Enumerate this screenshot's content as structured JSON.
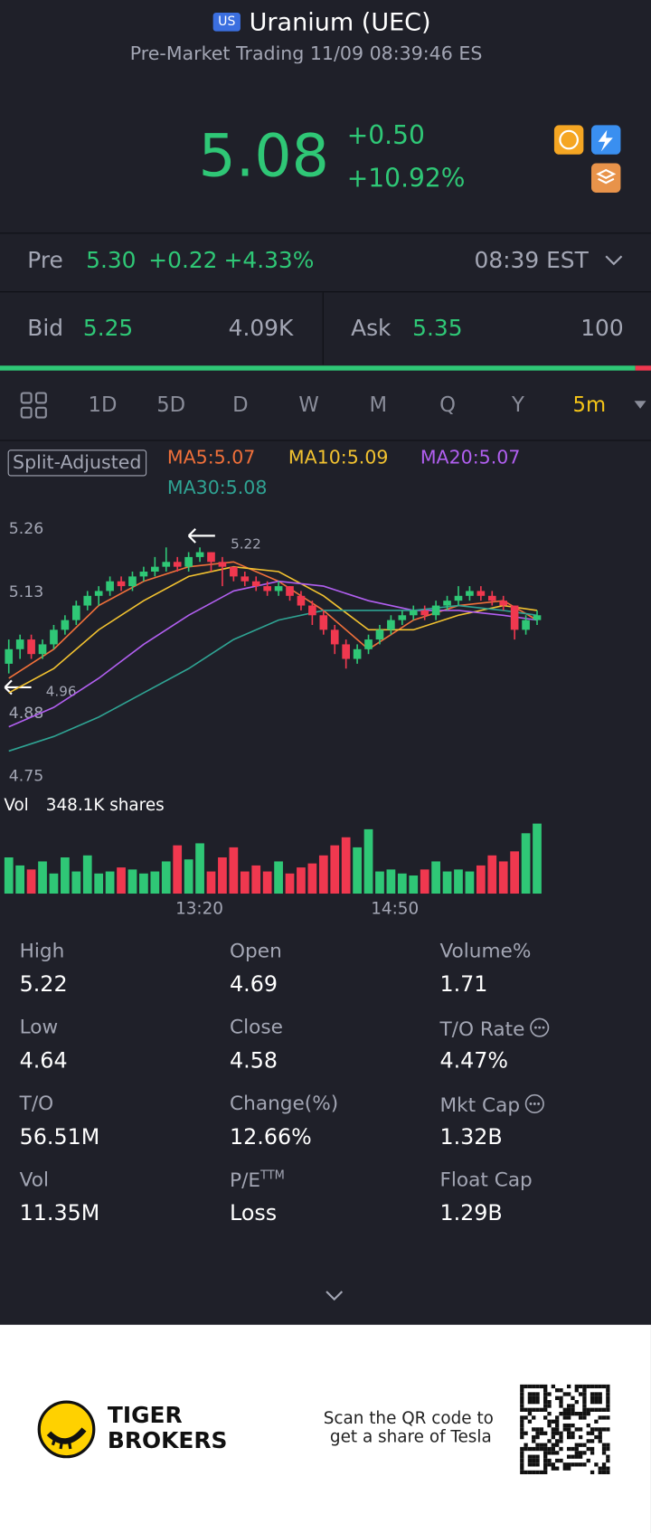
{
  "header": {
    "market_badge": "US",
    "title": "Uranium (UEC)",
    "subtitle": "Pre-Market Trading 11/09 08:39:46 ES"
  },
  "quote": {
    "price": "5.08",
    "change": "+0.50",
    "change_pct": "+10.92%"
  },
  "pre": {
    "label": "Pre",
    "price": "5.30",
    "change": "+0.22",
    "change_pct": "+4.33%",
    "time": "08:39 EST"
  },
  "bid": {
    "label": "Bid",
    "price": "5.25",
    "size": "4.09K"
  },
  "ask": {
    "label": "Ask",
    "price": "5.35",
    "size": "100"
  },
  "periods": [
    "1D",
    "5D",
    "D",
    "W",
    "M",
    "Q",
    "Y",
    "5m"
  ],
  "chart": {
    "type": "candlestick",
    "adjust_label": "Split-Adjusted",
    "ylim": [
      4.75,
      5.26
    ],
    "yticks": [
      5.26,
      5.13,
      4.88,
      4.75
    ],
    "high_marker": 5.22,
    "low_marker": 4.96,
    "candles": [
      [
        4.98,
        5.03,
        4.96,
        5.01
      ],
      [
        5.01,
        5.04,
        4.99,
        5.03
      ],
      [
        5.03,
        5.04,
        4.99,
        5.0
      ],
      [
        5.0,
        5.03,
        4.99,
        5.02
      ],
      [
        5.02,
        5.06,
        5.01,
        5.05
      ],
      [
        5.05,
        5.08,
        5.04,
        5.07
      ],
      [
        5.07,
        5.11,
        5.06,
        5.1
      ],
      [
        5.1,
        5.13,
        5.09,
        5.12
      ],
      [
        5.12,
        5.14,
        5.1,
        5.13
      ],
      [
        5.13,
        5.16,
        5.12,
        5.15
      ],
      [
        5.15,
        5.16,
        5.13,
        5.14
      ],
      [
        5.14,
        5.17,
        5.13,
        5.16
      ],
      [
        5.16,
        5.18,
        5.15,
        5.17
      ],
      [
        5.17,
        5.2,
        5.16,
        5.18
      ],
      [
        5.18,
        5.22,
        5.17,
        5.19
      ],
      [
        5.19,
        5.2,
        5.17,
        5.18
      ],
      [
        5.18,
        5.21,
        5.17,
        5.2
      ],
      [
        5.2,
        5.22,
        5.19,
        5.21
      ],
      [
        5.21,
        5.21,
        5.17,
        5.19
      ],
      [
        5.19,
        5.2,
        5.14,
        5.18
      ],
      [
        5.18,
        5.18,
        5.15,
        5.16
      ],
      [
        5.16,
        5.17,
        5.14,
        5.15
      ],
      [
        5.15,
        5.16,
        5.13,
        5.14
      ],
      [
        5.14,
        5.15,
        5.12,
        5.13
      ],
      [
        5.13,
        5.15,
        5.12,
        5.14
      ],
      [
        5.14,
        5.14,
        5.11,
        5.12
      ],
      [
        5.12,
        5.13,
        5.09,
        5.1
      ],
      [
        5.1,
        5.11,
        5.06,
        5.08
      ],
      [
        5.08,
        5.09,
        5.04,
        5.05
      ],
      [
        5.05,
        5.06,
        5.0,
        5.02
      ],
      [
        5.02,
        5.03,
        4.97,
        4.99
      ],
      [
        4.99,
        5.02,
        4.98,
        5.01
      ],
      [
        5.01,
        5.04,
        5.0,
        5.03
      ],
      [
        5.03,
        5.06,
        5.02,
        5.05
      ],
      [
        5.05,
        5.08,
        5.04,
        5.07
      ],
      [
        5.07,
        5.09,
        5.06,
        5.08
      ],
      [
        5.08,
        5.1,
        5.07,
        5.09
      ],
      [
        5.09,
        5.1,
        5.07,
        5.08
      ],
      [
        5.08,
        5.11,
        5.07,
        5.1
      ],
      [
        5.1,
        5.12,
        5.09,
        5.11
      ],
      [
        5.11,
        5.14,
        5.1,
        5.12
      ],
      [
        5.12,
        5.14,
        5.11,
        5.13
      ],
      [
        5.13,
        5.14,
        5.11,
        5.12
      ],
      [
        5.12,
        5.13,
        5.1,
        5.11
      ],
      [
        5.11,
        5.12,
        5.09,
        5.1
      ],
      [
        5.1,
        5.1,
        5.03,
        5.05
      ],
      [
        5.05,
        5.08,
        5.04,
        5.07
      ],
      [
        5.07,
        5.09,
        5.06,
        5.08
      ]
    ],
    "up_color": "#2fc776",
    "down_color": "#f0384f",
    "ma_x": [
      0,
      4,
      8,
      12,
      16,
      20,
      24,
      28,
      32,
      36,
      40,
      44,
      47
    ],
    "ma": [
      {
        "name": "MA5:5.07",
        "color": "#f0703a",
        "values": [
          4.95,
          5.01,
          5.1,
          5.15,
          5.18,
          5.19,
          5.15,
          5.09,
          5.01,
          5.07,
          5.1,
          5.11,
          5.07
        ]
      },
      {
        "name": "MA10:5.09",
        "color": "#f2c230",
        "values": [
          4.92,
          4.97,
          5.05,
          5.11,
          5.16,
          5.18,
          5.17,
          5.12,
          5.05,
          5.05,
          5.08,
          5.1,
          5.09
        ]
      },
      {
        "name": "MA20:5.07",
        "color": "#b15ff0",
        "values": [
          4.85,
          4.89,
          4.95,
          5.02,
          5.08,
          5.13,
          5.15,
          5.14,
          5.11,
          5.09,
          5.09,
          5.08,
          5.07
        ]
      },
      {
        "name": "MA30:5.08",
        "color": "#2fa393",
        "values": [
          4.8,
          4.83,
          4.87,
          4.92,
          4.97,
          5.03,
          5.07,
          5.09,
          5.09,
          5.09,
          5.1,
          5.09,
          5.08
        ]
      }
    ],
    "vol_label": "Vol",
    "vol_text": "348.1K shares",
    "vol_lim": [
      0,
      350000
    ],
    "volumes": [
      180000,
      140000,
      120000,
      160000,
      100000,
      180000,
      110000,
      190000,
      100000,
      110000,
      130000,
      120000,
      100000,
      110000,
      160000,
      240000,
      170000,
      250000,
      110000,
      180000,
      230000,
      110000,
      140000,
      110000,
      160000,
      100000,
      130000,
      150000,
      190000,
      240000,
      280000,
      230000,
      320000,
      110000,
      120000,
      100000,
      90000,
      120000,
      160000,
      110000,
      120000,
      110000,
      140000,
      190000,
      160000,
      210000,
      300000,
      348100
    ],
    "time_labels": [
      "13:20",
      "14:50"
    ]
  },
  "stats": [
    {
      "label": "High",
      "value": "5.22"
    },
    {
      "label": "Open",
      "value": "4.69"
    },
    {
      "label": "Volume%",
      "value": "1.71"
    },
    {
      "label": "Low",
      "value": "4.64"
    },
    {
      "label": "Close",
      "value": "4.58"
    },
    {
      "label": "T/O Rate",
      "value": "4.47%"
    },
    {
      "label": "T/O",
      "value": "56.51M"
    },
    {
      "label": "Change(%)",
      "value": "12.66%"
    },
    {
      "label": "Mkt Cap",
      "value": "1.32B"
    },
    {
      "label": "Vol",
      "value": "11.35M"
    },
    {
      "label": "P/E",
      "sup": "TTM",
      "value": "Loss"
    },
    {
      "label": "Float Cap",
      "value": "1.29B"
    }
  ],
  "footer": {
    "brand_1": "TIGER",
    "brand_2": "BROKERS",
    "scan_1": "Scan the QR code to",
    "scan_2": "get a share of Tesla"
  }
}
